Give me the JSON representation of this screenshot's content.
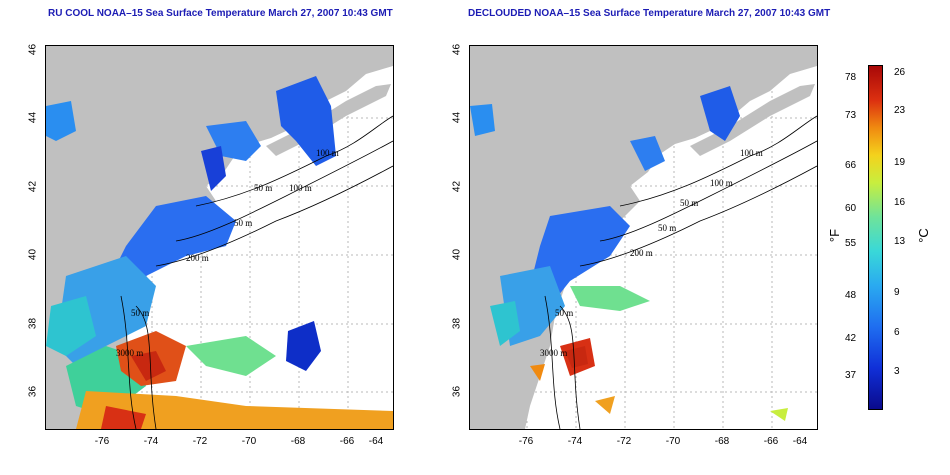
{
  "left_panel": {
    "title": "RU COOL NOAA–15 Sea Surface Temperature March 27, 2007 10:43 GMT",
    "contour_labels": [
      "50 m",
      "100 m",
      "200 m",
      "50 m",
      "3000 m",
      "50 m",
      "100 m"
    ]
  },
  "right_panel": {
    "title": "DECLOUDED NOAA–15 Sea Surface Temperature March 27, 2007 10:43 GMT",
    "contour_labels": [
      "100 m",
      "100 m",
      "50 m",
      "200 m",
      "50 m",
      "3000 m",
      "50 m"
    ]
  },
  "axes": {
    "x_ticks": [
      "-76",
      "-74",
      "-72",
      "-70",
      "-68",
      "-66",
      "-64"
    ],
    "y_ticks": [
      "46",
      "44",
      "42",
      "40",
      "38",
      "36"
    ]
  },
  "colorbar": {
    "unit_f": "°F",
    "unit_c": "°C",
    "fahrenheit_ticks": [
      "78",
      "73",
      "66",
      "60",
      "55",
      "48",
      "42",
      "37"
    ],
    "celsius_ticks": [
      "26",
      "23",
      "19",
      "16",
      "13",
      "9",
      "6",
      "3"
    ]
  },
  "colors": {
    "land": "#c0c0c0",
    "cloud": "#ffffff",
    "title": "#1c1cb4"
  }
}
